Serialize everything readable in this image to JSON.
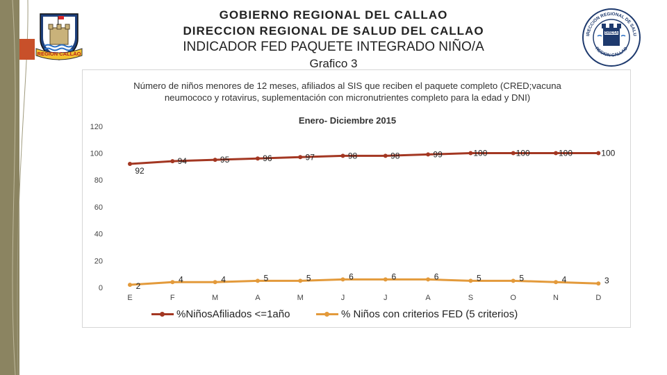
{
  "header": {
    "line1": "GOBIERNO REGIONAL DEL CALLAO",
    "line2": "DIRECCION  REGIONAL DE SALUD  DEL CALLAO",
    "line3": "INDICADOR FED PAQUETE INTEGRADO NIÑO/A",
    "line4": "Grafico 3"
  },
  "logos": {
    "left_text": "REGION CALLAO",
    "right_ring_top": "DIRECCION REGIONAL DE SALUD",
    "right_ring_bottom": "REGION CALLAO",
    "right_center": "DIRESA"
  },
  "colors": {
    "series1": "#a33722",
    "series2": "#e39a3b",
    "accent": "#c8502a",
    "band": "#8b8461"
  },
  "chart_data": {
    "type": "line",
    "title": "Número de niños menores de 12 meses, afiliados al SIS que reciben el paquete completo (CRED;vacuna neumococo y rotavirus, suplementación con micronutrientes completo para la edad y DNI)",
    "subtitle": "Enero- Diciembre 2015",
    "categories": [
      "E",
      "F",
      "M",
      "A",
      "M",
      "J",
      "J",
      "A",
      "S",
      "O",
      "N",
      "D"
    ],
    "y_ticks": [
      0,
      20,
      40,
      60,
      80,
      100,
      120
    ],
    "ylim": [
      0,
      120
    ],
    "grid": false,
    "legend_position": "bottom",
    "series": [
      {
        "name": "%NiñosAfiliados <=1año",
        "values": [
          92,
          94,
          95,
          96,
          97,
          98,
          98,
          99,
          100,
          100,
          100,
          100
        ]
      },
      {
        "name": "% Niños con criterios FED (5 criterios)",
        "values": [
          2,
          4,
          4,
          5,
          5,
          6,
          6,
          6,
          5,
          5,
          4,
          3
        ]
      }
    ]
  }
}
